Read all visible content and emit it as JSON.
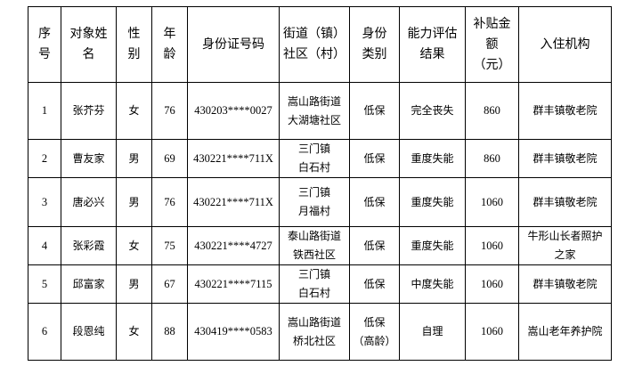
{
  "headers": [
    [
      "序",
      "号"
    ],
    [
      "对象姓",
      "名"
    ],
    [
      "性",
      "别"
    ],
    [
      "年",
      "龄"
    ],
    [
      "身份证号码"
    ],
    [
      "街道（镇）",
      "社区（村）"
    ],
    [
      "身份",
      "类别"
    ],
    [
      "能力评估",
      "结果"
    ],
    [
      "补贴金",
      "额",
      "（元）"
    ],
    [
      "入住机构"
    ]
  ],
  "rows": [
    {
      "no": "1",
      "name": "张芥芬",
      "gender": "女",
      "age": "76",
      "id": "430203****0027",
      "area": [
        "嵩山路街道",
        "大湖塘社区"
      ],
      "type": [
        "低保"
      ],
      "ability": "完全丧失",
      "subsidy": "860",
      "institution": [
        "群丰镇敬老院"
      ]
    },
    {
      "no": "2",
      "name": "曹友家",
      "gender": "男",
      "age": "69",
      "id": "430221****711X",
      "area": [
        "三门镇",
        "白石村"
      ],
      "type": [
        "低保"
      ],
      "ability": "重度失能",
      "subsidy": "860",
      "institution": [
        "群丰镇敬老院"
      ]
    },
    {
      "no": "3",
      "name": "唐必兴",
      "gender": "男",
      "age": "76",
      "id": "430221****711X",
      "area": [
        "三门镇",
        "月福村"
      ],
      "type": [
        "低保"
      ],
      "ability": "重度失能",
      "subsidy": "1060",
      "institution": [
        "群丰镇敬老院"
      ]
    },
    {
      "no": "4",
      "name": "张彩霞",
      "gender": "女",
      "age": "75",
      "id": "430221****4727",
      "area": [
        "泰山路街道",
        "铁西社区"
      ],
      "type": [
        "低保"
      ],
      "ability": "重度失能",
      "subsidy": "1060",
      "institution": [
        "牛形山长者照护",
        "之家"
      ]
    },
    {
      "no": "5",
      "name": "邱富家",
      "gender": "男",
      "age": "67",
      "id": "430221****7115",
      "area": [
        "三门镇",
        "白石村"
      ],
      "type": [
        "低保"
      ],
      "ability": "中度失能",
      "subsidy": "1060",
      "institution": [
        "群丰镇敬老院"
      ]
    },
    {
      "no": "6",
      "name": "段恩纯",
      "gender": "女",
      "age": "88",
      "id": "430419****0583",
      "area": [
        "嵩山路街道",
        "桥北社区"
      ],
      "type": [
        "低保",
        "（高龄）"
      ],
      "ability": "自理",
      "subsidy": "1060",
      "institution": [
        "嵩山老年养护院"
      ]
    }
  ]
}
